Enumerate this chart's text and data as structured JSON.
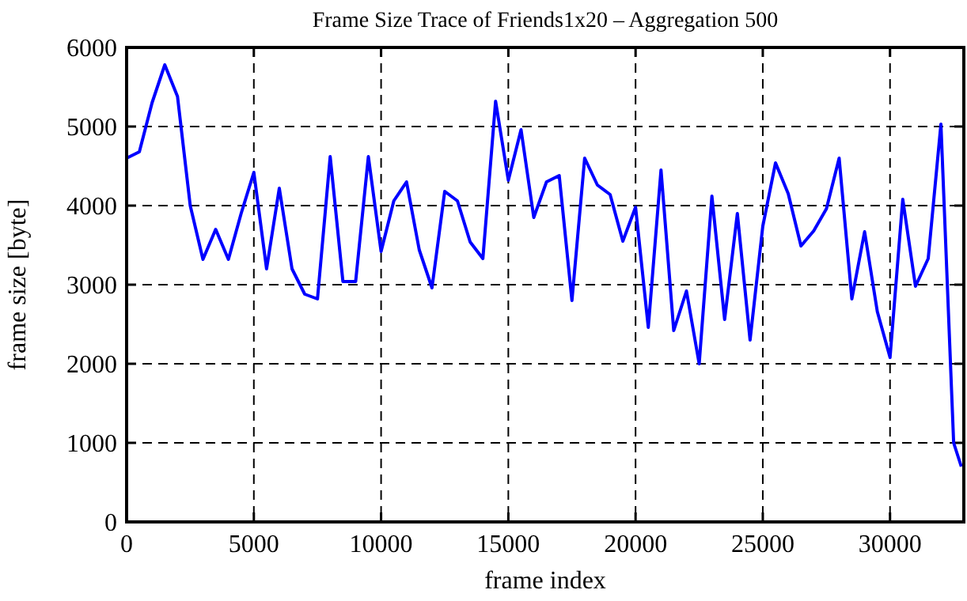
{
  "chart_data": {
    "type": "line",
    "title": "Frame Size Trace of Friends1x20 – Aggregation 500",
    "xlabel": "frame index",
    "ylabel": "frame size [byte]",
    "x": [
      0,
      500,
      1000,
      1500,
      2000,
      2500,
      3000,
      3500,
      4000,
      4500,
      5000,
      5500,
      6000,
      6500,
      7000,
      7500,
      8000,
      8500,
      9000,
      9500,
      10000,
      10500,
      11000,
      11500,
      12000,
      12500,
      13000,
      13500,
      14000,
      14500,
      15000,
      15500,
      16000,
      16500,
      17000,
      17500,
      18000,
      18500,
      19000,
      19500,
      20000,
      20500,
      21000,
      21500,
      22000,
      22500,
      23000,
      23500,
      24000,
      24500,
      25000,
      25500,
      26000,
      26500,
      27000,
      27500,
      28000,
      28500,
      29000,
      29500,
      30000,
      30500,
      31000,
      31500,
      32000,
      32500,
      32800
    ],
    "series": [
      {
        "color": "#0000ff",
        "values": [
          4600,
          4680,
          5300,
          5780,
          5380,
          4000,
          3320,
          3700,
          3320,
          3900,
          4420,
          3200,
          4220,
          3200,
          2880,
          2820,
          4620,
          3040,
          3040,
          4620,
          3420,
          4060,
          4300,
          3440,
          2960,
          4180,
          4060,
          3540,
          3330,
          5320,
          4320,
          4960,
          3850,
          4300,
          4380,
          2800,
          4600,
          4260,
          4140,
          3550,
          3980,
          2460,
          4450,
          2420,
          2920,
          2000,
          4120,
          2560,
          3900,
          2300,
          3740,
          4540,
          4150,
          3490,
          3680,
          3960,
          4600,
          2820,
          3670,
          2660,
          2080,
          4080,
          2980,
          3330,
          5030,
          1000,
          700
        ]
      }
    ],
    "xlim": [
      0,
      32900
    ],
    "xticks": [
      0,
      5000,
      10000,
      15000,
      20000,
      25000,
      30000
    ],
    "ylim": [
      0,
      6000
    ],
    "yticks": [
      0,
      1000,
      2000,
      3000,
      4000,
      5000,
      6000
    ],
    "grid": true,
    "line_style": "solid",
    "marker": "none"
  }
}
